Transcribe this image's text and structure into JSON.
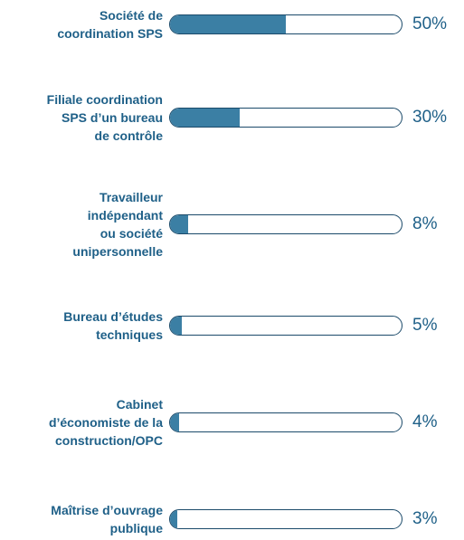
{
  "chart_data": {
    "type": "bar",
    "categories": [
      "Société de\ncoordination SPS",
      "Filiale coordination\nSPS d’un bureau\nde contrôle",
      "Travailleur\nindépendant\nou société\nunipersonnelle",
      "Bureau d’études\ntechniques",
      "Cabinet\nd’économiste de la\nconstruction/OPC",
      "Maîtrise d’ouvrage\npublique"
    ],
    "values": [
      50,
      30,
      8,
      5,
      4,
      3
    ],
    "value_labels": [
      "50%",
      "30%",
      "8%",
      "5%",
      "4%",
      "3%"
    ],
    "color": "#3b7fa4",
    "xlim": [
      0,
      100
    ]
  }
}
